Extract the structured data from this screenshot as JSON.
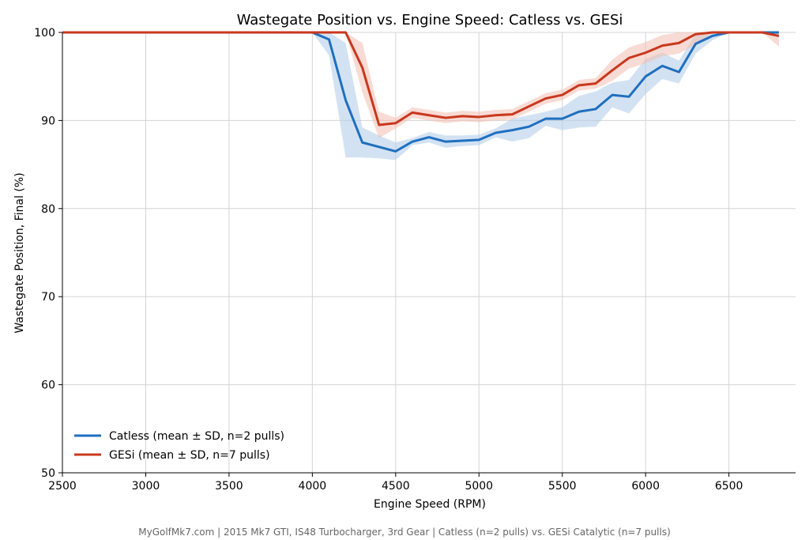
{
  "chart_data": {
    "type": "line",
    "title": "Wastegate Position vs. Engine Speed: Catless vs. GESi",
    "xlabel": "Engine Speed (RPM)",
    "ylabel": "Wastegate Position, Final (%)",
    "footer": "MyGolfMk7.com | 2015 Mk7 GTI, IS48 Turbocharger, 3rd Gear | Catless (n=2 pulls) vs. GESi Catalytic (n=7 pulls)",
    "xlim": [
      2500,
      6900
    ],
    "ylim": [
      50,
      100
    ],
    "xticks": [
      2500,
      3000,
      3500,
      4000,
      4500,
      5000,
      5500,
      6000,
      6500
    ],
    "yticks": [
      50,
      60,
      70,
      80,
      90,
      100
    ],
    "grid": true,
    "legend_position": "lower-left",
    "x": [
      2500,
      2600,
      2700,
      2800,
      2900,
      3000,
      3100,
      3200,
      3300,
      3400,
      3500,
      3600,
      3700,
      3800,
      3900,
      4000,
      4100,
      4200,
      4300,
      4400,
      4500,
      4600,
      4700,
      4800,
      4900,
      5000,
      5100,
      5200,
      5300,
      5400,
      5500,
      5600,
      5700,
      5800,
      5900,
      6000,
      6100,
      6200,
      6300,
      6400,
      6500,
      6600,
      6700,
      6800
    ],
    "series": [
      {
        "name": "Catless (mean ± SD, n=2 pulls)",
        "color": "#1f6fbf",
        "band_color": "#aecbe8",
        "values": [
          100,
          100,
          100,
          100,
          100,
          100,
          100,
          100,
          100,
          100,
          100,
          100,
          100,
          100,
          100,
          100,
          99.2,
          92.3,
          87.5,
          87.0,
          86.5,
          87.6,
          88.1,
          87.6,
          87.7,
          87.8,
          88.6,
          88.9,
          89.3,
          90.2,
          90.2,
          91.0,
          91.3,
          92.9,
          92.7,
          95.0,
          96.2,
          95.5,
          98.7,
          99.6,
          100,
          100,
          100,
          100
        ],
        "sd": [
          0,
          0,
          0,
          0,
          0,
          0,
          0,
          0,
          0,
          0,
          0,
          0,
          0,
          0,
          0,
          0,
          1.8,
          6.5,
          1.7,
          1.3,
          1.0,
          0.4,
          0.6,
          0.7,
          0.6,
          0.6,
          0.5,
          1.3,
          1.3,
          0.8,
          1.3,
          1.8,
          2.0,
          1.4,
          1.9,
          2.0,
          1.5,
          1.3,
          1.1,
          0.5,
          0,
          0,
          0,
          0.2
        ]
      },
      {
        "name": "GESi (mean ± SD, n=7 pulls)",
        "color": "#c8381e",
        "band_color": "#f2bdb0",
        "values": [
          100,
          100,
          100,
          100,
          100,
          100,
          100,
          100,
          100,
          100,
          100,
          100,
          100,
          100,
          100,
          100,
          100,
          100,
          96.0,
          89.5,
          89.7,
          90.9,
          90.6,
          90.3,
          90.5,
          90.4,
          90.6,
          90.7,
          91.6,
          92.5,
          92.9,
          94.0,
          94.2,
          95.7,
          97.1,
          97.7,
          98.5,
          98.8,
          99.8,
          100,
          100,
          100,
          100,
          99.6
        ]
      }
    ]
  }
}
